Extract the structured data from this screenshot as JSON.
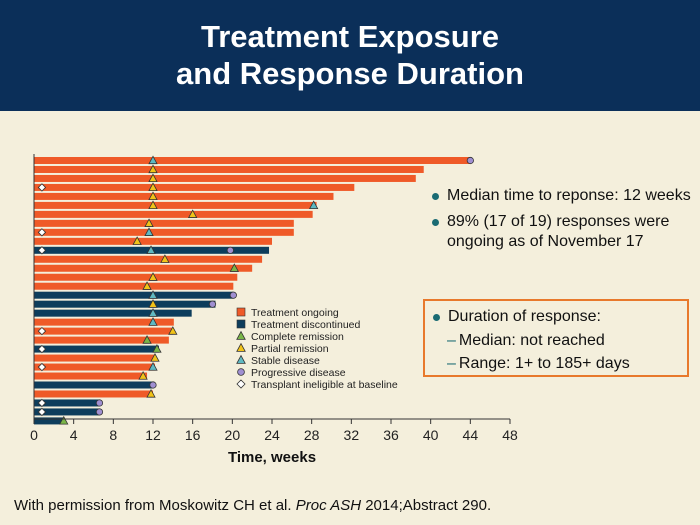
{
  "slide": {
    "title_line1": "Treatment Exposure",
    "title_line2": "and Response Duration",
    "bullets": [
      "Median time to reponse: 12 weeks",
      "89% (17 of 19) responses were ongoing as of November 17"
    ],
    "box": {
      "bullet": "Duration of response:",
      "sub1": "Median: not reached",
      "sub2": "Range: 1+ to 185+ days"
    },
    "footer_pre": "With permission from Moskowitz CH et al. ",
    "footer_italic": "Proc ASH",
    "footer_post": " 2014;Abstract 290."
  },
  "colors": {
    "header_bg": "#0b2f59",
    "background": "#f4efdc",
    "ongoing": "#ef5a28",
    "discontinued": "#0d3d5c",
    "complete_remission": "#7ab648",
    "partial_remission": "#f2c318",
    "stable_disease": "#5fb9c2",
    "progressive_disease": "#9f8fd1",
    "transplant_ineligible": "#ffffff",
    "box_border": "#e8792c"
  },
  "chart_data": {
    "type": "bar",
    "orientation": "horizontal",
    "xlabel": "Time, weeks",
    "xlim": [
      0,
      48
    ],
    "xticks": [
      0,
      4,
      8,
      12,
      16,
      20,
      24,
      28,
      32,
      36,
      40,
      44,
      48
    ],
    "legend_position": "inside-lower-right",
    "legend": [
      {
        "label": "Treatment ongoing",
        "symbol": "square",
        "color": "#ef5a28"
      },
      {
        "label": "Treatment discontinued",
        "symbol": "square",
        "color": "#0d3d5c"
      },
      {
        "label": "Complete remission",
        "symbol": "triangle",
        "color": "#7ab648"
      },
      {
        "label": "Partial remission",
        "symbol": "triangle",
        "color": "#f2c318"
      },
      {
        "label": "Stable disease",
        "symbol": "triangle",
        "color": "#5fb9c2"
      },
      {
        "label": "Progressive disease",
        "symbol": "circle",
        "color": "#9f8fd1"
      },
      {
        "label": "Transplant ineligible at baseline",
        "symbol": "diamond",
        "color": "#ffffff"
      }
    ],
    "patients": [
      {
        "duration": 44,
        "status": "ongoing",
        "markers": [
          {
            "type": "stable_disease",
            "week": 12
          },
          {
            "type": "progressive_disease",
            "week": 44
          }
        ]
      },
      {
        "duration": 39.3,
        "status": "ongoing",
        "markers": [
          {
            "type": "partial_remission",
            "week": 12
          }
        ]
      },
      {
        "duration": 38.5,
        "status": "ongoing",
        "markers": [
          {
            "type": "partial_remission",
            "week": 12
          }
        ]
      },
      {
        "duration": 32.3,
        "status": "ongoing",
        "markers": [
          {
            "type": "transplant_ineligible",
            "week": 0.8
          },
          {
            "type": "partial_remission",
            "week": 12
          }
        ]
      },
      {
        "duration": 30.2,
        "status": "ongoing",
        "markers": [
          {
            "type": "partial_remission",
            "week": 12
          }
        ]
      },
      {
        "duration": 28.5,
        "status": "ongoing",
        "markers": [
          {
            "type": "partial_remission",
            "week": 12
          },
          {
            "type": "stable_disease",
            "week": 28.2
          }
        ]
      },
      {
        "duration": 28.1,
        "status": "ongoing",
        "markers": [
          {
            "type": "partial_remission",
            "week": 16
          }
        ]
      },
      {
        "duration": 26.2,
        "status": "ongoing",
        "markers": [
          {
            "type": "partial_remission",
            "week": 11.6
          }
        ]
      },
      {
        "duration": 26.2,
        "status": "ongoing",
        "markers": [
          {
            "type": "transplant_ineligible",
            "week": 0.8
          },
          {
            "type": "stable_disease",
            "week": 11.6
          }
        ]
      },
      {
        "duration": 24,
        "status": "ongoing",
        "markers": [
          {
            "type": "partial_remission",
            "week": 10.4
          }
        ]
      },
      {
        "duration": 23.7,
        "status": "discontinued",
        "markers": [
          {
            "type": "transplant_ineligible",
            "week": 0.8
          },
          {
            "type": "stable_disease",
            "week": 11.8
          },
          {
            "type": "progressive_disease",
            "week": 19.8
          }
        ]
      },
      {
        "duration": 23,
        "status": "ongoing",
        "markers": [
          {
            "type": "partial_remission",
            "week": 13.2
          }
        ]
      },
      {
        "duration": 22,
        "status": "ongoing",
        "markers": [
          {
            "type": "complete_remission",
            "week": 20.2
          }
        ]
      },
      {
        "duration": 20.5,
        "status": "ongoing",
        "markers": [
          {
            "type": "partial_remission",
            "week": 12
          }
        ]
      },
      {
        "duration": 20.1,
        "status": "ongoing",
        "markers": [
          {
            "type": "partial_remission",
            "week": 11.4
          }
        ]
      },
      {
        "duration": 20.1,
        "status": "discontinued",
        "markers": [
          {
            "type": "stable_disease",
            "week": 12
          },
          {
            "type": "progressive_disease",
            "week": 20.1
          }
        ]
      },
      {
        "duration": 18.3,
        "status": "discontinued",
        "markers": [
          {
            "type": "partial_remission",
            "week": 12
          },
          {
            "type": "progressive_disease",
            "week": 18
          }
        ]
      },
      {
        "duration": 15.9,
        "status": "discontinued",
        "markers": [
          {
            "type": "stable_disease",
            "week": 12
          }
        ]
      },
      {
        "duration": 14.1,
        "status": "ongoing",
        "markers": [
          {
            "type": "stable_disease",
            "week": 12
          }
        ]
      },
      {
        "duration": 14,
        "status": "ongoing",
        "markers": [
          {
            "type": "transplant_ineligible",
            "week": 0.8
          },
          {
            "type": "partial_remission",
            "week": 14
          }
        ]
      },
      {
        "duration": 13.6,
        "status": "ongoing",
        "markers": [
          {
            "type": "complete_remission",
            "week": 11.4
          }
        ]
      },
      {
        "duration": 12.6,
        "status": "discontinued",
        "markers": [
          {
            "type": "transplant_ineligible",
            "week": 0.8
          },
          {
            "type": "complete_remission",
            "week": 12.4
          }
        ]
      },
      {
        "duration": 12.2,
        "status": "ongoing",
        "markers": [
          {
            "type": "partial_remission",
            "week": 12.2
          }
        ]
      },
      {
        "duration": 12.2,
        "status": "ongoing",
        "markers": [
          {
            "type": "transplant_ineligible",
            "week": 0.8
          },
          {
            "type": "stable_disease",
            "week": 12
          }
        ]
      },
      {
        "duration": 11.4,
        "status": "ongoing",
        "markers": [
          {
            "type": "partial_remission",
            "week": 11
          }
        ]
      },
      {
        "duration": 12,
        "status": "discontinued",
        "markers": [
          {
            "type": "progressive_disease",
            "week": 12
          }
        ]
      },
      {
        "duration": 12,
        "status": "ongoing",
        "markers": [
          {
            "type": "partial_remission",
            "week": 11.8
          }
        ]
      },
      {
        "duration": 6.6,
        "status": "discontinued",
        "markers": [
          {
            "type": "transplant_ineligible",
            "week": 0.8
          },
          {
            "type": "progressive_disease",
            "week": 6.6
          }
        ]
      },
      {
        "duration": 6.6,
        "status": "discontinued",
        "markers": [
          {
            "type": "transplant_ineligible",
            "week": 0.8
          },
          {
            "type": "progressive_disease",
            "week": 6.6
          }
        ]
      },
      {
        "duration": 3,
        "status": "discontinued",
        "markers": [
          {
            "type": "complete_remission",
            "week": 3
          }
        ]
      }
    ]
  }
}
